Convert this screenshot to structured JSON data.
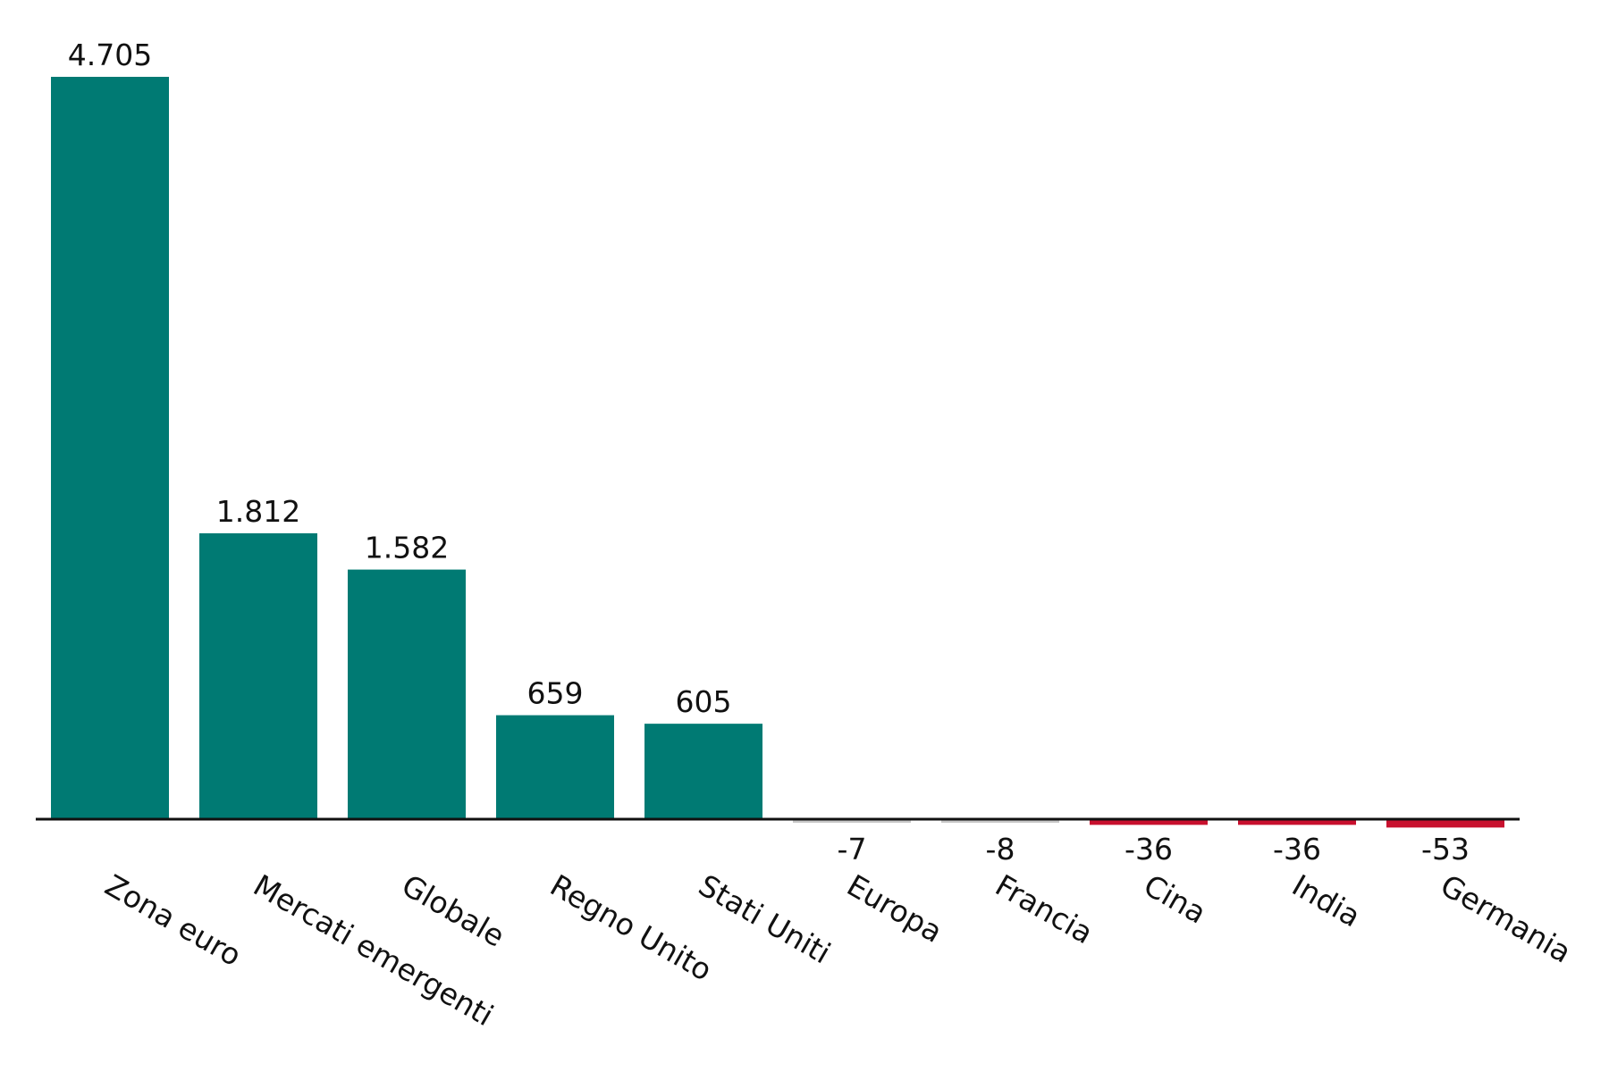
{
  "chart_data": {
    "type": "bar",
    "categories": [
      "Zona euro",
      "Mercati emergenti",
      "Globale",
      "Regno Unito",
      "Stati Uniti",
      "Europa",
      "Francia",
      "Cina",
      "India",
      "Germania"
    ],
    "values": [
      4705,
      1812,
      1582,
      659,
      605,
      -7,
      -8,
      -36,
      -36,
      -53
    ],
    "value_labels": [
      "4.705",
      "1.812",
      "1.582",
      "659",
      "605",
      "-7",
      "-8",
      "-36",
      "-36",
      "-53"
    ],
    "title": "",
    "xlabel": "",
    "ylabel": "",
    "ylim": [
      -53,
      4705
    ],
    "grid": false,
    "legend": "none",
    "colors": {
      "positive": "#007A73",
      "small_negative": "#C8C8C8",
      "negative": "#C8102E",
      "baseline": "#111111"
    },
    "bar_colors": [
      "#007A73",
      "#007A73",
      "#007A73",
      "#007A73",
      "#007A73",
      "#C8C8C8",
      "#C8C8C8",
      "#C8102E",
      "#C8102E",
      "#C8102E"
    ]
  }
}
